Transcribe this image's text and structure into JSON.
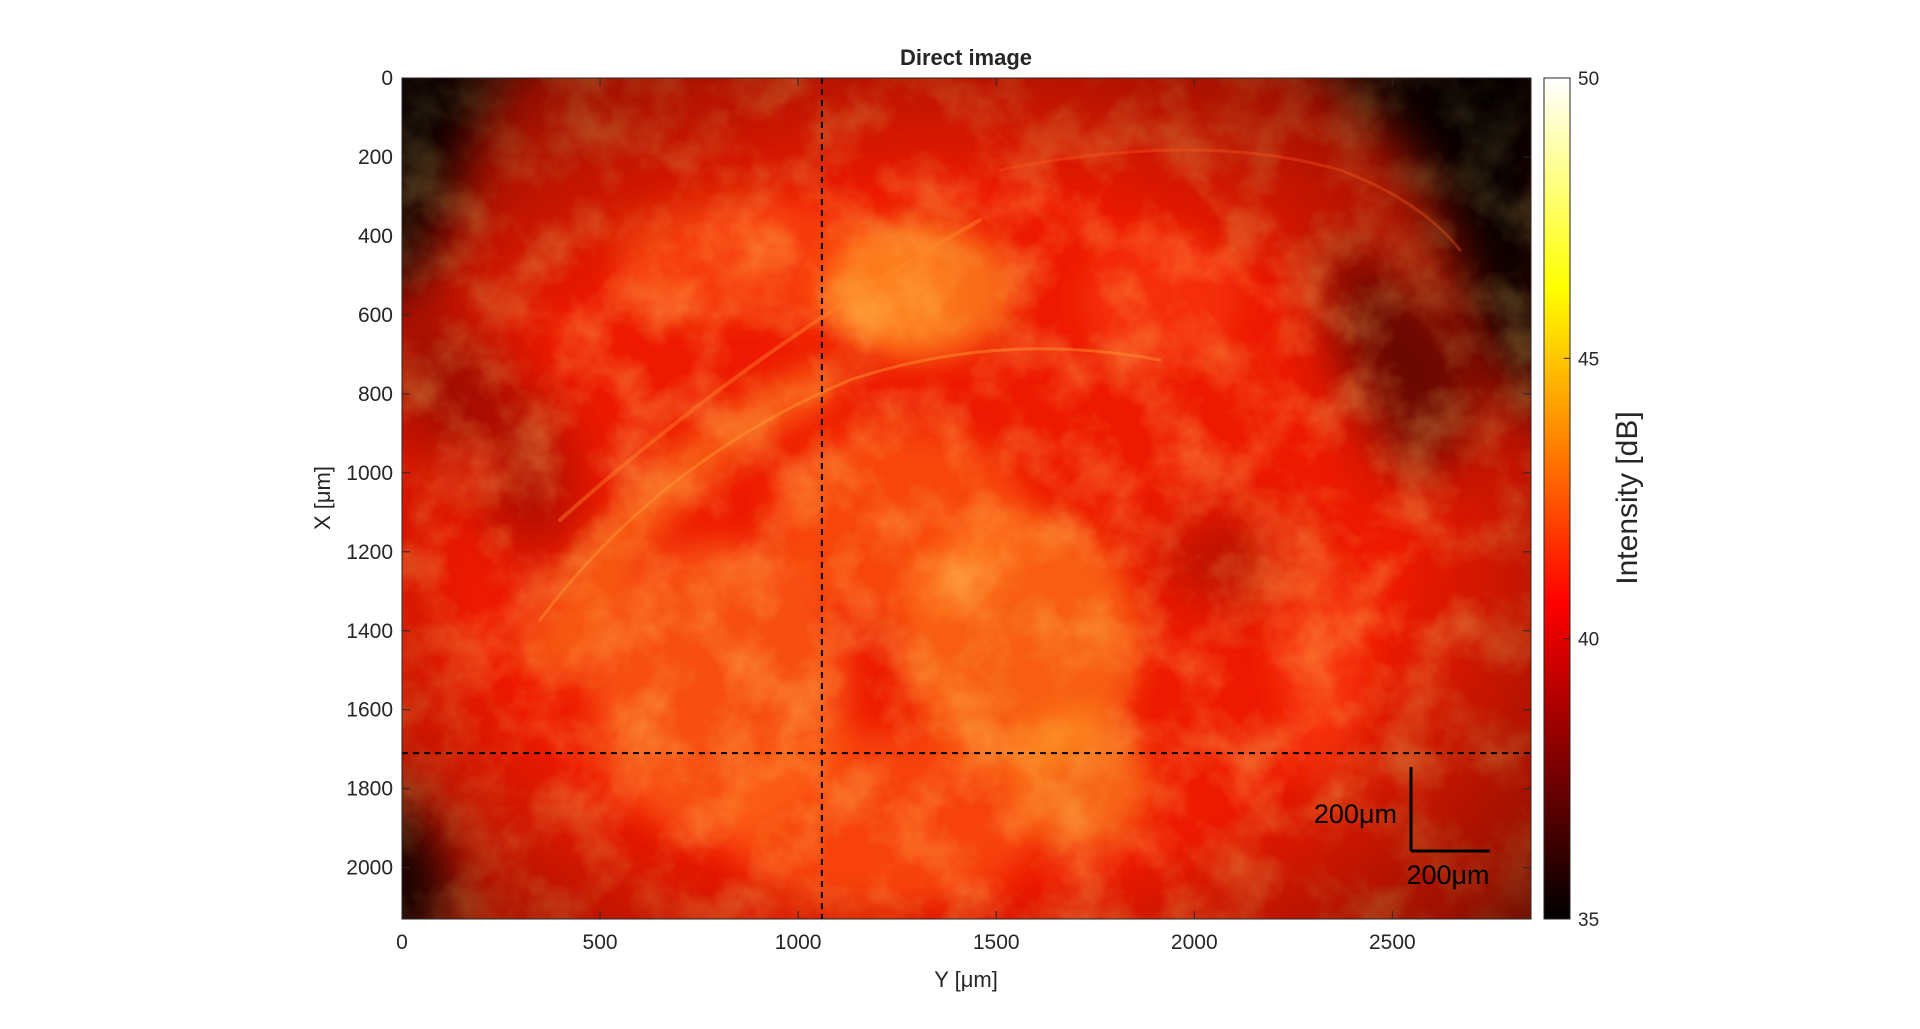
{
  "chart_data": {
    "type": "heatmap",
    "title": "Direct image",
    "xlabel": "Y [μm]",
    "ylabel": "X [μm]",
    "xlim": [
      0,
      2850
    ],
    "ylim": [
      0,
      2130
    ],
    "x_ticks": [
      0,
      500,
      1000,
      1500,
      2000,
      2500
    ],
    "y_ticks": [
      0,
      200,
      400,
      600,
      800,
      1000,
      1200,
      1400,
      1600,
      1800,
      2000
    ],
    "y_reversed": true,
    "colormap": "hot",
    "colorbar": {
      "label": "Intensity [dB]",
      "min": 35,
      "max": 50,
      "ticks": [
        35,
        40,
        45,
        50
      ]
    },
    "crosshair": {
      "y_value": 1060,
      "x_value": 1710,
      "style": "dashed",
      "color": "#000000"
    },
    "scale_bar": {
      "length": 200,
      "unit": "μm",
      "vertical_label": "200μm",
      "horizontal_label": "200μm",
      "corner": "bottom-right"
    },
    "grid": false,
    "image_intensity_db": {
      "background": 39.5,
      "dark_corners": [
        "top-left",
        "top-right",
        "bottom-left"
      ],
      "dark_corner_level": 35,
      "bright_regions_level": 43,
      "peak_level": 44
    }
  }
}
